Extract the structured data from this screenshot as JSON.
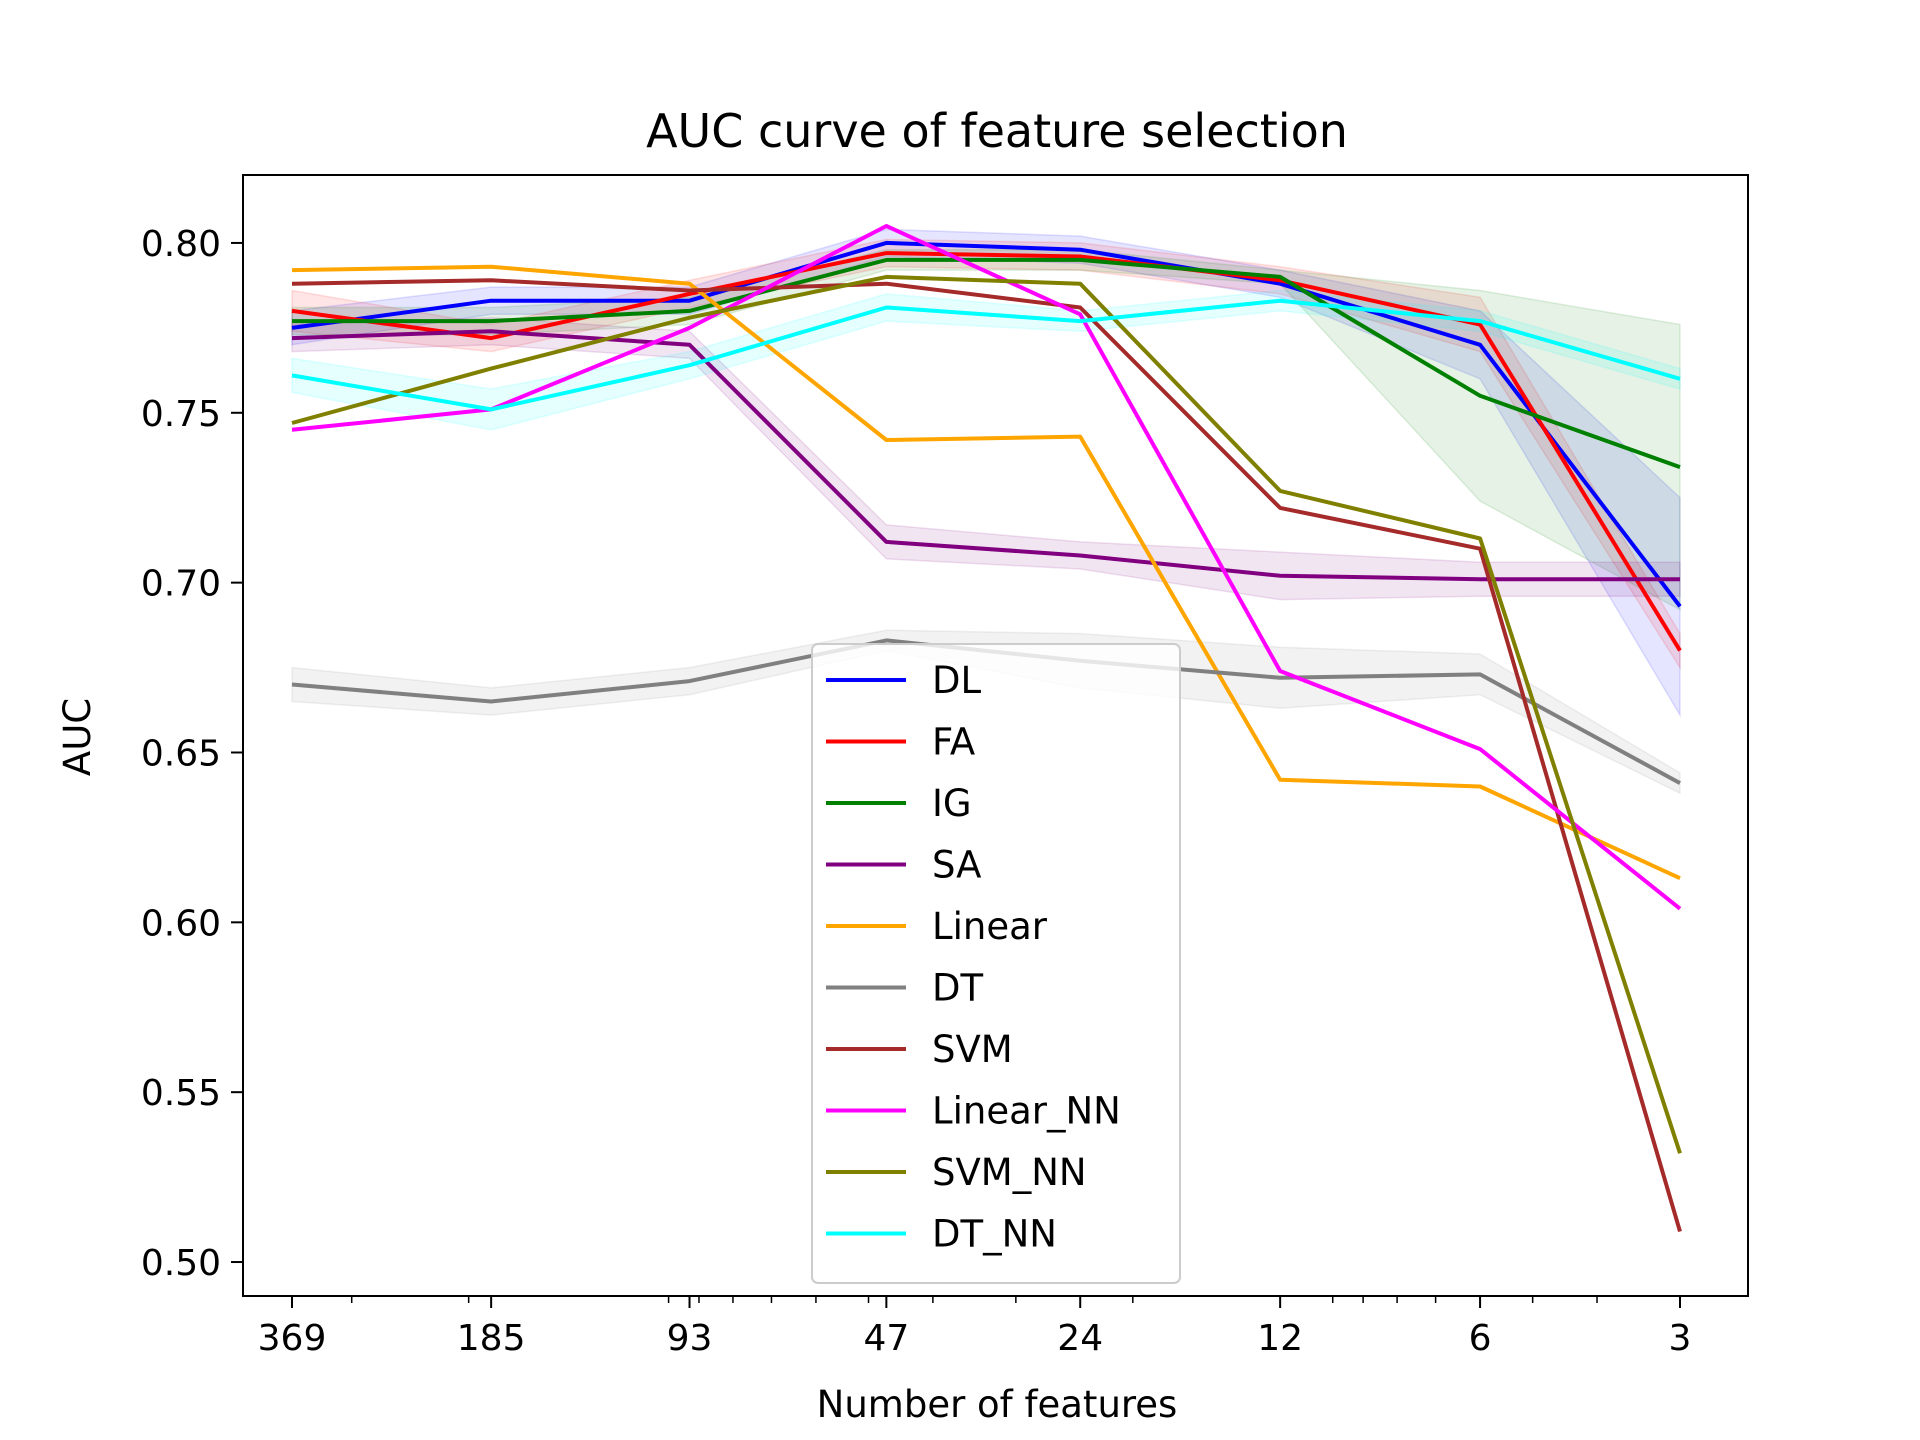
{
  "chart_data": {
    "type": "line",
    "title": "AUC curve of feature selection",
    "xlabel": "Number of features",
    "ylabel": "AUC",
    "x_scale": "log",
    "x_reversed": true,
    "x": [
      369,
      185,
      93,
      47,
      24,
      12,
      6,
      3
    ],
    "x_tick_labels": [
      "369",
      "185",
      "93",
      "47",
      "24",
      "12",
      "6",
      "3"
    ],
    "ylim": [
      0.49,
      0.82
    ],
    "y_ticks": [
      0.5,
      0.55,
      0.6,
      0.65,
      0.7,
      0.75,
      0.8
    ],
    "y_tick_labels": [
      "0.50",
      "0.55",
      "0.60",
      "0.65",
      "0.70",
      "0.75",
      "0.80"
    ],
    "grid": false,
    "legend_position": "lower center",
    "series": [
      {
        "name": "DL",
        "color": "#0000ff",
        "values": [
          0.775,
          0.783,
          0.783,
          0.8,
          0.798,
          0.788,
          0.77,
          0.693
        ],
        "band": [
          0.005,
          0.004,
          0.004,
          0.004,
          0.004,
          0.004,
          0.01,
          0.032
        ]
      },
      {
        "name": "FA",
        "color": "#ff0000",
        "values": [
          0.78,
          0.772,
          0.785,
          0.797,
          0.796,
          0.789,
          0.776,
          0.68
        ],
        "band": [
          0.006,
          0.004,
          0.004,
          0.004,
          0.004,
          0.004,
          0.008,
          0.005
        ]
      },
      {
        "name": "IG",
        "color": "#008000",
        "values": [
          0.777,
          0.777,
          0.78,
          0.795,
          0.795,
          0.79,
          0.755,
          0.734
        ],
        "band": [
          0.004,
          0.004,
          0.004,
          0.003,
          0.003,
          0.002,
          0.031,
          0.042
        ]
      },
      {
        "name": "SA",
        "color": "#800080",
        "values": [
          0.772,
          0.774,
          0.77,
          0.712,
          0.708,
          0.702,
          0.701,
          0.701
        ],
        "band": [
          0.004,
          0.004,
          0.004,
          0.005,
          0.004,
          0.007,
          0.005,
          0.005
        ]
      },
      {
        "name": "Linear",
        "color": "#ffa500",
        "values": [
          0.792,
          0.793,
          0.788,
          0.742,
          0.743,
          0.642,
          0.64,
          0.613
        ],
        "band": [
          0,
          0,
          0,
          0,
          0,
          0,
          0,
          0
        ]
      },
      {
        "name": "DT",
        "color": "#808080",
        "values": [
          0.67,
          0.665,
          0.671,
          0.683,
          0.677,
          0.672,
          0.673,
          0.641
        ],
        "band": [
          0.005,
          0.004,
          0.004,
          0.003,
          0.008,
          0.009,
          0.006,
          0.003
        ]
      },
      {
        "name": "SVM",
        "color": "#a52a2a",
        "values": [
          0.788,
          0.789,
          0.786,
          0.788,
          0.781,
          0.722,
          0.71,
          0.509
        ],
        "band": [
          0,
          0,
          0,
          0,
          0,
          0,
          0,
          0
        ]
      },
      {
        "name": "Linear_NN",
        "color": "#ff00ff",
        "values": [
          0.745,
          0.751,
          0.775,
          0.805,
          0.779,
          0.674,
          0.651,
          0.604
        ],
        "band": [
          0,
          0,
          0,
          0,
          0,
          0,
          0,
          0
        ]
      },
      {
        "name": "SVM_NN",
        "color": "#808000",
        "values": [
          0.747,
          0.763,
          0.778,
          0.79,
          0.788,
          0.727,
          0.713,
          0.532
        ],
        "band": [
          0,
          0,
          0,
          0,
          0,
          0,
          0,
          0
        ]
      },
      {
        "name": "DT_NN",
        "color": "#00ffff",
        "values": [
          0.761,
          0.751,
          0.764,
          0.781,
          0.777,
          0.783,
          0.777,
          0.76
        ],
        "band": [
          0.005,
          0.006,
          0.004,
          0.004,
          0.003,
          0.003,
          0.003,
          0.003
        ]
      }
    ]
  }
}
